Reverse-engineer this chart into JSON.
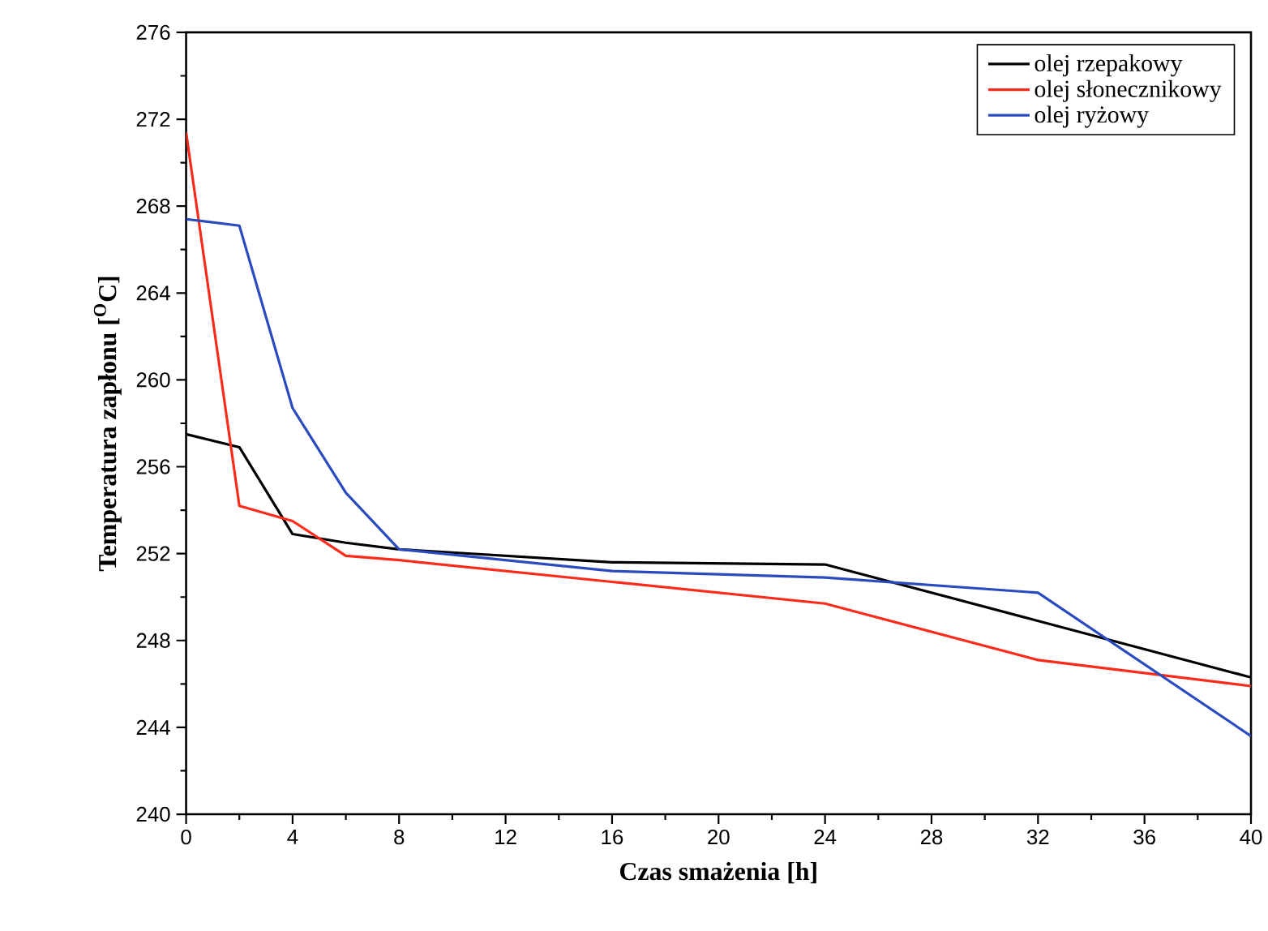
{
  "chart_data": {
    "type": "line",
    "xlabel": "Czas smażenia [h]",
    "ylabel": "Temperatura zapłonu [$^{O}$C]",
    "x": [
      0,
      2,
      4,
      6,
      8,
      16,
      24,
      32,
      40
    ],
    "series": [
      {
        "name": "olej rzepakowy",
        "color": "#000000",
        "values": [
          257.5,
          256.9,
          252.9,
          252.5,
          252.2,
          251.6,
          251.5,
          248.9,
          246.3
        ]
      },
      {
        "name": "olej słonecznikowy",
        "color": "#ff2a1a",
        "values": [
          271.4,
          254.2,
          253.5,
          251.9,
          251.7,
          250.7,
          249.7,
          247.1,
          245.9
        ]
      },
      {
        "name": "olej ryżowy",
        "color": "#2a4bbf",
        "values": [
          267.4,
          267.1,
          258.7,
          254.8,
          252.2,
          251.2,
          250.9,
          250.2,
          243.6
        ]
      }
    ],
    "xlim": [
      0,
      40
    ],
    "ylim": [
      240,
      276
    ],
    "xticks": [
      0,
      4,
      8,
      12,
      16,
      20,
      24,
      28,
      32,
      36,
      40
    ],
    "yticks": [
      240,
      244,
      248,
      252,
      256,
      260,
      264,
      268,
      272,
      276
    ],
    "grid": false,
    "legend": "top right",
    "marker": "none",
    "line_style": "solid"
  }
}
